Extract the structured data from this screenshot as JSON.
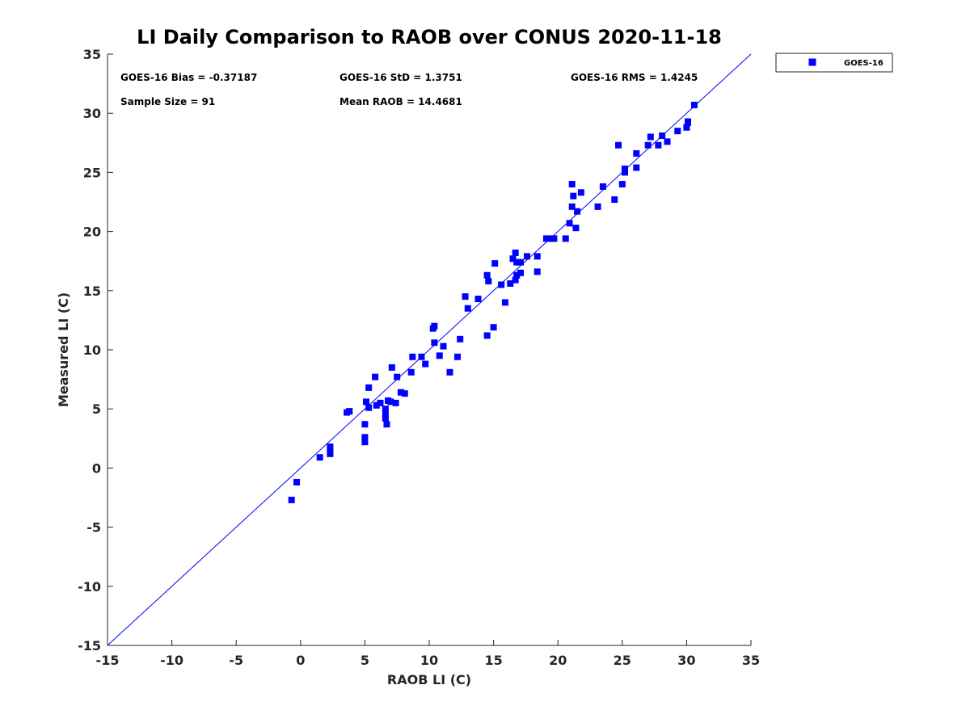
{
  "chart_data": {
    "type": "scatter",
    "title": "LI Daily Comparison to RAOB over CONUS 2020-11-18",
    "xlabel": "RAOB LI (C)",
    "ylabel": "Measured LI (C)",
    "xlim": [
      -15,
      35
    ],
    "ylim": [
      -15,
      35
    ],
    "xticks": [
      -15,
      -10,
      -5,
      0,
      5,
      10,
      15,
      20,
      25,
      30,
      35
    ],
    "yticks": [
      -15,
      -10,
      -5,
      0,
      5,
      10,
      15,
      20,
      25,
      30,
      35
    ],
    "xtick_labels": [
      "-15",
      "-10",
      "-5",
      "0",
      "5",
      "10",
      "15",
      "20",
      "25",
      "30",
      "35"
    ],
    "ytick_labels": [
      "-15",
      "-10",
      "-5",
      "0",
      "5",
      "10",
      "15",
      "20",
      "25",
      "30",
      "35"
    ],
    "grid": false,
    "legend": {
      "position": "top-right-outside",
      "entries": [
        "GOES-16"
      ]
    },
    "reference_line": {
      "label": "1:1",
      "from": [
        -15,
        -15
      ],
      "to": [
        35,
        35
      ],
      "color": "#0000ff"
    },
    "stats": {
      "bias": "GOES-16 Bias = -0.37187",
      "std": "GOES-16 StD = 1.3751",
      "rms": "GOES-16 RMS = 1.4245",
      "sample_size": "Sample Size = 91",
      "mean_raob": "Mean RAOB = 14.4681"
    },
    "series": [
      {
        "name": "GOES-16",
        "color": "#0000ff",
        "marker": "square",
        "points": [
          [
            -0.7,
            -2.7
          ],
          [
            -0.3,
            -1.2
          ],
          [
            1.5,
            0.9
          ],
          [
            2.3,
            1.2
          ],
          [
            2.3,
            1.5
          ],
          [
            2.3,
            1.8
          ],
          [
            3.6,
            4.7
          ],
          [
            3.8,
            4.8
          ],
          [
            5.0,
            2.2
          ],
          [
            5.0,
            2.6
          ],
          [
            5.0,
            3.7
          ],
          [
            5.1,
            5.6
          ],
          [
            5.3,
            5.1
          ],
          [
            5.3,
            6.8
          ],
          [
            5.8,
            7.7
          ],
          [
            5.9,
            5.3
          ],
          [
            6.2,
            5.5
          ],
          [
            6.6,
            4.2
          ],
          [
            6.6,
            4.6
          ],
          [
            6.6,
            5.0
          ],
          [
            6.7,
            3.7
          ],
          [
            6.8,
            5.7
          ],
          [
            7.0,
            5.6
          ],
          [
            7.1,
            8.5
          ],
          [
            7.4,
            5.5
          ],
          [
            7.5,
            7.7
          ],
          [
            7.8,
            6.4
          ],
          [
            8.1,
            6.3
          ],
          [
            8.6,
            8.1
          ],
          [
            8.7,
            9.4
          ],
          [
            9.4,
            9.4
          ],
          [
            9.7,
            8.8
          ],
          [
            10.3,
            11.8
          ],
          [
            10.4,
            12.0
          ],
          [
            10.4,
            10.6
          ],
          [
            10.8,
            9.5
          ],
          [
            11.1,
            10.3
          ],
          [
            11.6,
            8.1
          ],
          [
            12.2,
            9.4
          ],
          [
            12.4,
            10.9
          ],
          [
            12.8,
            14.5
          ],
          [
            13.0,
            13.5
          ],
          [
            13.8,
            14.3
          ],
          [
            14.5,
            11.2
          ],
          [
            14.5,
            16.3
          ],
          [
            14.6,
            15.8
          ],
          [
            15.0,
            11.9
          ],
          [
            15.1,
            17.3
          ],
          [
            15.6,
            15.5
          ],
          [
            15.9,
            14.0
          ],
          [
            16.3,
            15.6
          ],
          [
            16.5,
            17.7
          ],
          [
            16.7,
            15.9
          ],
          [
            16.7,
            18.2
          ],
          [
            16.8,
            16.3
          ],
          [
            16.8,
            17.4
          ],
          [
            17.1,
            16.5
          ],
          [
            17.1,
            17.4
          ],
          [
            17.6,
            17.9
          ],
          [
            18.4,
            16.6
          ],
          [
            18.4,
            17.9
          ],
          [
            19.1,
            19.4
          ],
          [
            19.5,
            19.4
          ],
          [
            19.7,
            19.4
          ],
          [
            20.6,
            19.4
          ],
          [
            20.9,
            20.7
          ],
          [
            21.1,
            22.1
          ],
          [
            21.1,
            24.0
          ],
          [
            21.2,
            23.0
          ],
          [
            21.4,
            20.3
          ],
          [
            21.5,
            21.7
          ],
          [
            21.8,
            23.3
          ],
          [
            23.1,
            22.1
          ],
          [
            23.5,
            23.8
          ],
          [
            24.4,
            22.7
          ],
          [
            24.7,
            27.3
          ],
          [
            25.0,
            24.0
          ],
          [
            25.2,
            25.0
          ],
          [
            25.2,
            25.3
          ],
          [
            26.1,
            25.4
          ],
          [
            26.1,
            26.6
          ],
          [
            27.0,
            27.3
          ],
          [
            27.2,
            28.0
          ],
          [
            27.8,
            27.3
          ],
          [
            28.1,
            28.1
          ],
          [
            28.5,
            27.6
          ],
          [
            29.3,
            28.5
          ],
          [
            30.0,
            28.8
          ],
          [
            30.1,
            29.2
          ],
          [
            30.1,
            29.3
          ],
          [
            30.6,
            30.7
          ]
        ]
      }
    ]
  }
}
